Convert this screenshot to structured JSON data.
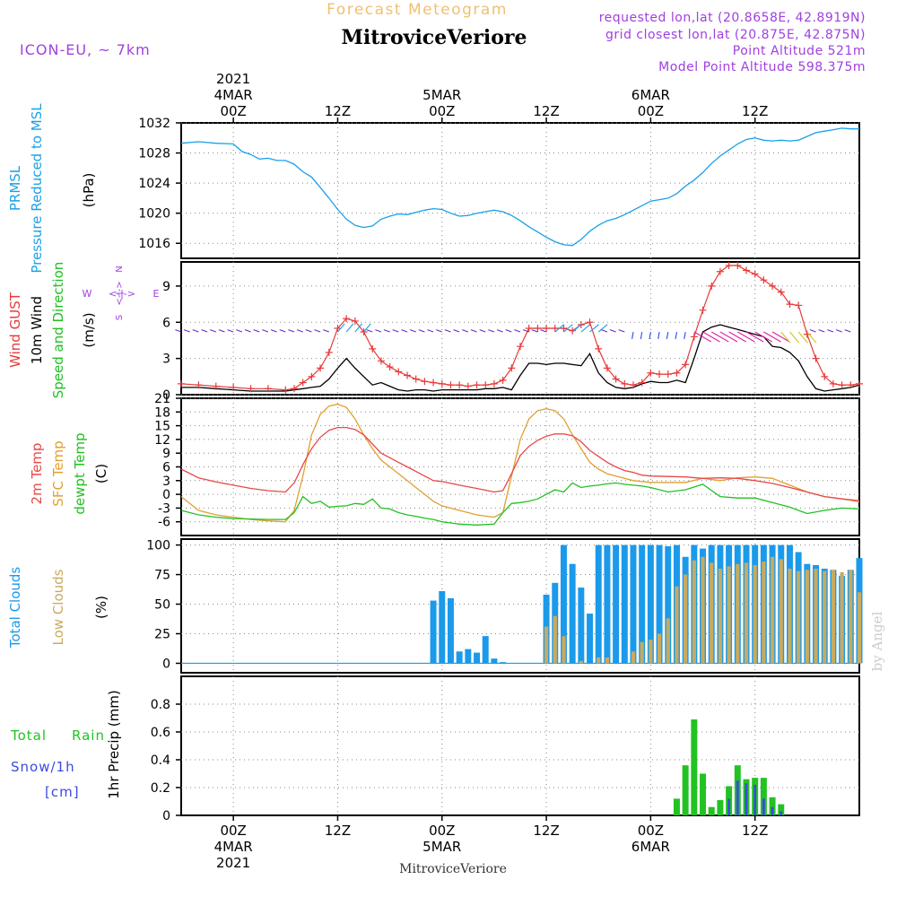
{
  "header": {
    "product": "Forecast Meteogram",
    "location": "MitroviceVeriore",
    "model": "ICON-EU, ~ 7km",
    "requested": "requested lon,lat (20.8658E, 42.8919N)",
    "closest": "grid closest lon,lat (20.875E, 42.875N)",
    "point_alt": "Point Altitude 521m",
    "model_alt": "Model Point Altitude 598.375m"
  },
  "time_axis": {
    "top": [
      {
        "hour": "00Z",
        "date": "4MAR",
        "year": "2021"
      },
      {
        "hour": "12Z",
        "date": "",
        "year": ""
      },
      {
        "hour": "00Z",
        "date": "5MAR",
        "year": ""
      },
      {
        "hour": "12Z",
        "date": "",
        "year": ""
      },
      {
        "hour": "00Z",
        "date": "6MAR",
        "year": ""
      },
      {
        "hour": "12Z",
        "date": "",
        "year": ""
      }
    ],
    "bottom": [
      {
        "hour": "00Z",
        "date": "4MAR",
        "year": "2021"
      },
      {
        "hour": "12Z",
        "date": "",
        "year": ""
      },
      {
        "hour": "00Z",
        "date": "5MAR",
        "year": ""
      },
      {
        "hour": "12Z",
        "date": "",
        "year": ""
      },
      {
        "hour": "00Z",
        "date": "6MAR",
        "year": ""
      },
      {
        "hour": "12Z",
        "date": "",
        "year": ""
      }
    ],
    "footer": "MitroviceVeriore"
  },
  "watermark": "by Angel",
  "compass": {
    "n": "N",
    "s": "S",
    "w": "W",
    "e": "E",
    "arrow": "<-|->"
  },
  "panel_labels": {
    "pressure": {
      "l1": "PRMSL",
      "l2": "Pressure Reduced to MSL",
      "unit": "(hPa)"
    },
    "wind": {
      "l1": "Wind GUST",
      "l2": "10m Wind",
      "l3": "Speed and Direction",
      "unit": "(m/s)"
    },
    "temp": {
      "l1": "2m Temp",
      "l2": "SFC Temp",
      "l3": "dewpt Temp",
      "unit": "(C)"
    },
    "clouds": {
      "l1": "Total Clouds",
      "l2": "Low Clouds",
      "unit": "(%)"
    },
    "precip": {
      "l1": "Total",
      "l1b": "Rain",
      "l2": "Snow/1h",
      "l3": "[cm]",
      "unit": "1hr Precip (mm)"
    }
  },
  "colors": {
    "pressure": "#1aa0e8",
    "gust": "#e83a3a",
    "wind": "#000000",
    "temp2m": "#e84848",
    "sfc": "#e0a030",
    "dewpt": "#22c022",
    "total_clouds": "#1a9aea",
    "low_clouds": "#c8aa60",
    "rain": "#22c222",
    "snow": "#3a4ae0",
    "label_purple": "#a040e0",
    "header_orange": "#f0c070"
  },
  "chart_data": [
    {
      "type": "line",
      "name": "pressure",
      "x_hours": [
        -6,
        -4,
        -2,
        0,
        1,
        2,
        3,
        4,
        5,
        6,
        7,
        8,
        9,
        10,
        11,
        12,
        13,
        14,
        15,
        16,
        17,
        18,
        19,
        20,
        21,
        22,
        23,
        24,
        25,
        26,
        27,
        28,
        29,
        30,
        31,
        32,
        33,
        34,
        35,
        36,
        37,
        38,
        39,
        40,
        41,
        42,
        43,
        44,
        45,
        46,
        47,
        48,
        49,
        50,
        51,
        52,
        53,
        54,
        55,
        56,
        57,
        58,
        59,
        60,
        61,
        62,
        63,
        64,
        65,
        66,
        67,
        68,
        69,
        70,
        71,
        72
      ],
      "values": [
        1029.3,
        1029.5,
        1029.3,
        1029.2,
        1028.2,
        1027.8,
        1027.2,
        1027.3,
        1027.0,
        1027.0,
        1026.5,
        1025.5,
        1024.8,
        1023.4,
        1022.0,
        1020.5,
        1019.2,
        1018.4,
        1018.1,
        1018.3,
        1019.2,
        1019.6,
        1019.9,
        1019.8,
        1020.1,
        1020.4,
        1020.6,
        1020.5,
        1020.0,
        1019.6,
        1019.7,
        1020.0,
        1020.2,
        1020.4,
        1020.2,
        1019.7,
        1019.0,
        1018.2,
        1017.5,
        1016.8,
        1016.2,
        1015.8,
        1015.7,
        1016.5,
        1017.6,
        1018.4,
        1019.0,
        1019.3,
        1019.8,
        1020.4,
        1021.0,
        1021.6,
        1021.8,
        1022.0,
        1022.6,
        1023.6,
        1024.4,
        1025.4,
        1026.6,
        1027.6,
        1028.4,
        1029.2,
        1029.8,
        1030.0,
        1029.7,
        1029.6,
        1029.7,
        1029.6,
        1029.7,
        1030.2,
        1030.7,
        1030.9,
        1031.1,
        1031.3,
        1031.2,
        1031.2
      ],
      "xlim": [
        -6,
        72
      ],
      "ylim": [
        1014,
        1032
      ],
      "yticks": [
        1016,
        1020,
        1024,
        1028,
        1032
      ],
      "grid": true
    },
    {
      "type": "line",
      "name": "wind",
      "x_hours": [
        -6,
        -4,
        -2,
        0,
        2,
        4,
        6,
        7,
        8,
        9,
        10,
        11,
        12,
        13,
        14,
        15,
        16,
        17,
        18,
        19,
        20,
        21,
        22,
        23,
        24,
        25,
        26,
        27,
        28,
        29,
        30,
        31,
        32,
        33,
        34,
        35,
        36,
        37,
        38,
        39,
        40,
        41,
        42,
        43,
        44,
        45,
        46,
        47,
        48,
        49,
        50,
        51,
        52,
        53,
        54,
        55,
        56,
        57,
        58,
        59,
        60,
        61,
        62,
        63,
        64,
        65,
        66,
        67,
        68,
        69,
        70,
        71,
        72
      ],
      "gust": [
        0.9,
        0.8,
        0.7,
        0.6,
        0.5,
        0.5,
        0.4,
        0.5,
        1.0,
        1.5,
        2.2,
        3.5,
        5.5,
        6.3,
        6.1,
        5.2,
        3.8,
        2.8,
        2.3,
        1.9,
        1.6,
        1.3,
        1.1,
        1.0,
        0.9,
        0.8,
        0.8,
        0.7,
        0.8,
        0.8,
        0.9,
        1.2,
        2.2,
        4.0,
        5.5,
        5.5,
        5.5,
        5.5,
        5.5,
        5.3,
        5.8,
        6.0,
        3.8,
        2.2,
        1.3,
        0.9,
        0.8,
        1.0,
        1.8,
        1.7,
        1.7,
        1.8,
        2.5,
        4.8,
        7.0,
        9.0,
        10.2,
        10.7,
        10.7,
        10.3,
        10.0,
        9.5,
        9.0,
        8.5,
        7.5,
        7.4,
        5.0,
        3.0,
        1.5,
        0.9,
        0.8,
        0.8,
        0.9
      ],
      "wind": [
        0.6,
        0.6,
        0.5,
        0.4,
        0.3,
        0.3,
        0.3,
        0.4,
        0.5,
        0.6,
        0.7,
        1.3,
        2.2,
        3.0,
        2.2,
        1.5,
        0.8,
        1.0,
        0.7,
        0.4,
        0.3,
        0.4,
        0.4,
        0.3,
        0.4,
        0.4,
        0.4,
        0.4,
        0.4,
        0.5,
        0.5,
        0.6,
        0.4,
        1.6,
        2.6,
        2.6,
        2.5,
        2.6,
        2.6,
        2.5,
        2.4,
        3.4,
        1.8,
        1.0,
        0.6,
        0.5,
        0.6,
        0.9,
        1.1,
        1.0,
        1.0,
        1.2,
        1.0,
        3.0,
        5.2,
        5.6,
        5.8,
        5.6,
        5.4,
        5.2,
        5.0,
        4.8,
        4.0,
        3.9,
        3.5,
        2.8,
        1.5,
        0.5,
        0.3,
        0.4,
        0.5,
        0.6,
        0.8
      ],
      "xlim": [
        -6,
        72
      ],
      "ylim": [
        0,
        11
      ],
      "yticks": [
        0,
        3,
        6,
        9
      ],
      "grid": true
    },
    {
      "type": "line",
      "name": "temperature",
      "x_hours": [
        -6,
        -4,
        -2,
        0,
        2,
        4,
        6,
        7,
        8,
        9,
        10,
        11,
        12,
        13,
        14,
        15,
        16,
        17,
        18,
        19,
        20,
        21,
        22,
        23,
        24,
        26,
        28,
        30,
        31,
        32,
        33,
        34,
        35,
        36,
        37,
        38,
        39,
        40,
        41,
        42,
        43,
        44,
        45,
        46,
        47,
        48,
        50,
        52,
        54,
        56,
        58,
        60,
        62,
        64,
        66,
        68,
        70,
        72
      ],
      "temp2m": [
        5.5,
        3.6,
        2.7,
        2.0,
        1.3,
        0.8,
        0.5,
        2.5,
        6.5,
        10.0,
        12.5,
        14.0,
        14.6,
        14.6,
        14.2,
        13.0,
        11.0,
        9.0,
        8.0,
        7.0,
        6.0,
        5.0,
        4.0,
        3.0,
        2.8,
        2.0,
        1.3,
        0.5,
        0.8,
        4.5,
        8.5,
        10.5,
        11.8,
        12.7,
        13.2,
        13.2,
        12.8,
        11.5,
        9.6,
        8.3,
        7.0,
        6.0,
        5.2,
        4.8,
        4.2,
        4.0,
        3.9,
        3.8,
        3.5,
        3.6,
        3.5,
        3.0,
        2.4,
        1.5,
        0.5,
        -0.5,
        -1.0,
        -1.4
      ],
      "sfc": [
        -0.5,
        -3.5,
        -4.5,
        -5.0,
        -5.5,
        -5.8,
        -6.0,
        -3.5,
        4.0,
        13.0,
        17.5,
        19.3,
        19.7,
        19.0,
        16.5,
        13.0,
        10.0,
        7.5,
        6.0,
        4.5,
        3.0,
        1.5,
        0.0,
        -1.5,
        -2.5,
        -3.5,
        -4.5,
        -5.0,
        -4.0,
        4.0,
        12.0,
        16.5,
        18.3,
        18.7,
        18.3,
        16.5,
        13.0,
        10.0,
        7.0,
        5.5,
        4.5,
        4.0,
        3.5,
        3.0,
        2.8,
        2.6,
        2.6,
        2.6,
        3.5,
        3.0,
        3.6,
        3.8,
        3.5,
        2.0,
        0.5,
        -0.5,
        -1.0,
        -1.6
      ],
      "dewpt": [
        -3.5,
        -4.5,
        -5.0,
        -5.3,
        -5.4,
        -5.5,
        -5.5,
        -4.0,
        -0.5,
        -2.0,
        -1.5,
        -2.8,
        -2.6,
        -2.5,
        -2.0,
        -2.2,
        -1.0,
        -3.0,
        -3.2,
        -4.0,
        -4.5,
        -4.8,
        -5.2,
        -5.5,
        -6.0,
        -6.5,
        -6.7,
        -6.5,
        -4.0,
        -2.0,
        -1.8,
        -1.5,
        -1.0,
        0.0,
        1.0,
        0.5,
        2.5,
        1.5,
        1.8,
        2.0,
        2.3,
        2.5,
        2.2,
        2.0,
        1.8,
        1.5,
        0.5,
        1.0,
        2.2,
        -0.5,
        -0.8,
        -0.8,
        -1.8,
        -2.8,
        -4.2,
        -3.5,
        -3.0,
        -3.2
      ],
      "xlim": [
        -6,
        72
      ],
      "ylim": [
        -9,
        21
      ],
      "yticks": [
        -6,
        -3,
        0,
        3,
        6,
        9,
        12,
        15,
        18,
        21
      ],
      "grid": true
    },
    {
      "type": "bar",
      "name": "clouds",
      "x_hours": [
        23,
        24,
        25,
        26,
        27,
        28,
        29,
        30,
        31,
        32,
        36,
        37,
        38,
        39,
        40,
        41,
        42,
        43,
        44,
        45,
        46,
        47,
        48,
        49,
        50,
        51,
        52,
        53,
        54,
        55,
        56,
        57,
        58,
        59,
        60,
        61,
        62,
        63,
        64,
        65,
        66,
        67,
        68,
        69,
        70,
        71,
        72
      ],
      "total": [
        53,
        61,
        55,
        10,
        12,
        9,
        23,
        4,
        1,
        0,
        58,
        68,
        100,
        84,
        64,
        42,
        100,
        100,
        100,
        100,
        100,
        100,
        100,
        100,
        99,
        100,
        90,
        100,
        97,
        100,
        100,
        100,
        100,
        100,
        100,
        100,
        100,
        100,
        100,
        94,
        84,
        83,
        80,
        79,
        74,
        79,
        89
      ],
      "low": [
        0,
        0,
        0,
        0,
        0,
        0,
        0,
        0,
        0,
        0,
        31,
        40,
        23,
        0,
        2,
        0,
        5,
        5,
        0,
        0,
        10,
        18,
        20,
        25,
        38,
        65,
        75,
        87,
        90,
        85,
        80,
        82,
        84,
        85,
        83,
        86,
        90,
        88,
        80,
        78,
        79,
        80,
        78,
        79,
        77,
        79,
        60
      ],
      "xlim": [
        -6,
        72
      ],
      "ylim": [
        -8,
        105
      ],
      "yticks": [
        0,
        25,
        50,
        75,
        100
      ],
      "grid": true
    },
    {
      "type": "bar",
      "name": "precip",
      "x_hours": [
        51,
        52,
        53,
        54,
        55,
        56,
        57,
        58,
        59,
        60,
        61,
        62,
        63
      ],
      "rain": [
        0.12,
        0.36,
        0.69,
        0.3,
        0.06,
        0.11,
        0.21,
        0.36,
        0.26,
        0.27,
        0.27,
        0.13,
        0.08
      ],
      "snow": [
        0,
        0,
        0,
        0,
        0,
        0,
        0.12,
        0.25,
        0.23,
        0.22,
        0.12,
        0.06,
        0.03
      ],
      "xlim": [
        -6,
        72
      ],
      "ylim": [
        0,
        1.0
      ],
      "yticks": [
        "0",
        "0.2",
        "0.4",
        "0.6",
        "0.8"
      ],
      "grid": true
    }
  ]
}
